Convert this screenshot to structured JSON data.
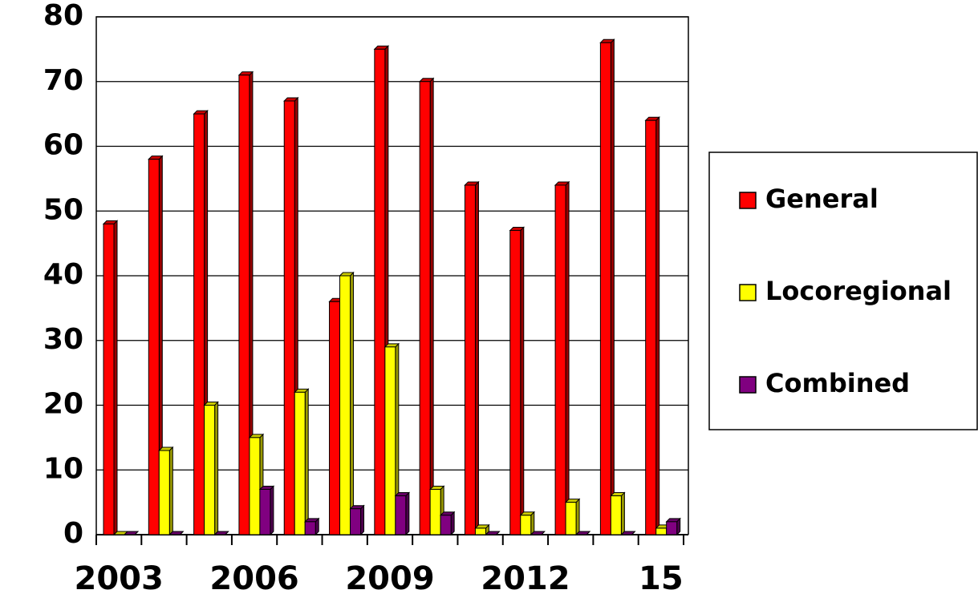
{
  "chart_data": {
    "type": "bar",
    "categories": [
      "2003",
      null,
      null,
      "2006",
      null,
      null,
      "2009",
      null,
      null,
      "2012",
      null,
      null,
      "15"
    ],
    "series": [
      {
        "name": "General",
        "color": "#ff0000",
        "values": [
          48,
          58,
          65,
          71,
          67,
          36,
          75,
          70,
          54,
          47,
          54,
          76,
          64
        ]
      },
      {
        "name": "Locoregional",
        "color": "#ffff00",
        "values": [
          0,
          13,
          20,
          15,
          22,
          40,
          29,
          7,
          1,
          3,
          5,
          6,
          1
        ]
      },
      {
        "name": "Combined",
        "color": "#800080",
        "values": [
          0,
          0,
          0,
          7,
          2,
          4,
          6,
          3,
          0,
          0,
          0,
          0,
          2
        ]
      }
    ],
    "ylim": [
      0,
      80
    ],
    "yticks": [
      0,
      10,
      20,
      30,
      40,
      50,
      60,
      70,
      80
    ],
    "grid": true,
    "legend": "right"
  }
}
